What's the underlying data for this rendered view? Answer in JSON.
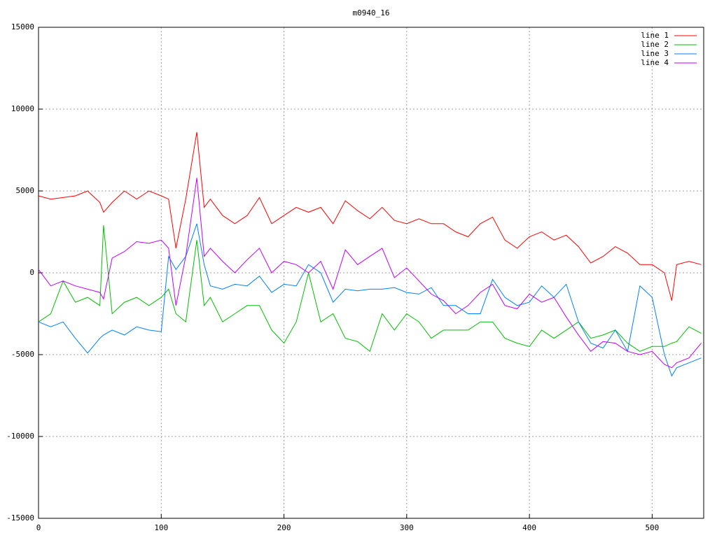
{
  "chart_data": {
    "type": "line",
    "title": "m0940_16",
    "x": [
      0,
      10,
      20,
      30,
      40,
      50,
      53,
      60,
      70,
      80,
      90,
      100,
      106,
      112,
      120,
      129,
      135,
      140,
      150,
      160,
      170,
      180,
      190,
      200,
      210,
      220,
      230,
      240,
      250,
      260,
      270,
      280,
      290,
      300,
      310,
      320,
      330,
      340,
      350,
      360,
      370,
      380,
      390,
      400,
      410,
      420,
      430,
      440,
      450,
      460,
      470,
      480,
      490,
      500,
      510,
      516,
      520,
      530,
      540
    ],
    "series": [
      {
        "name": "line 1",
        "color": "#ff0000",
        "values": [
          4700,
          4500,
          4600,
          4700,
          5000,
          4300,
          3700,
          4300,
          5000,
          4500,
          5000,
          4700,
          4500,
          1500,
          4500,
          8600,
          4000,
          4500,
          3500,
          3000,
          3500,
          4600,
          3000,
          3500,
          4000,
          3700,
          4000,
          3000,
          4400,
          3800,
          3300,
          4000,
          3200,
          3000,
          3300,
          3000,
          3000,
          2500,
          2200,
          3000,
          3400,
          2000,
          1500,
          2200,
          2500,
          2000,
          2300,
          1600,
          600,
          1000,
          1600,
          1200,
          500,
          500,
          0,
          -1700,
          500,
          700,
          500
        ]
      },
      {
        "name": "line 2",
        "color": "#00c000",
        "values": [
          -3000,
          -2500,
          -500,
          -1800,
          -1500,
          -2000,
          2900,
          -2500,
          -1800,
          -1500,
          -2000,
          -1500,
          -1000,
          -2500,
          -3000,
          2000,
          -2000,
          -1500,
          -3000,
          -2500,
          -2000,
          -2000,
          -3500,
          -4300,
          -3000,
          0,
          -3000,
          -2500,
          -4000,
          -4200,
          -4800,
          -2500,
          -3500,
          -2500,
          -3000,
          -4000,
          -3500,
          -3500,
          -3500,
          -3000,
          -3000,
          -4000,
          -4300,
          -4500,
          -3500,
          -4000,
          -3500,
          -3000,
          -4000,
          -3800,
          -3500,
          -4300,
          -4800,
          -4500,
          -4500,
          -4300,
          -4200,
          -3300,
          -3700
        ]
      },
      {
        "name": "line 3",
        "color": "#0080ff",
        "values": [
          -3000,
          -3300,
          -3000,
          -4000,
          -4900,
          -4000,
          -3800,
          -3500,
          -3800,
          -3300,
          -3500,
          -3600,
          1000,
          200,
          1000,
          3000,
          500,
          -800,
          -1000,
          -700,
          -800,
          -200,
          -1200,
          -700,
          -800,
          500,
          0,
          -1800,
          -1000,
          -1100,
          -1000,
          -1000,
          -900,
          -1200,
          -1300,
          -900,
          -2000,
          -2000,
          -2500,
          -2500,
          -400,
          -1500,
          -2000,
          -1800,
          -800,
          -1500,
          -700,
          -3000,
          -4300,
          -4600,
          -3500,
          -4800,
          -800,
          -1500,
          -5000,
          -6300,
          -5800,
          -5500,
          -5200
        ]
      },
      {
        "name": "line 4",
        "color": "#c000ff",
        "values": [
          200,
          -800,
          -500,
          -800,
          -1000,
          -1200,
          -1600,
          900,
          1300,
          1900,
          1800,
          2000,
          1500,
          -2000,
          1000,
          5800,
          1000,
          1500,
          700,
          0,
          800,
          1500,
          0,
          700,
          500,
          0,
          700,
          -1000,
          1400,
          500,
          1000,
          1500,
          -300,
          300,
          -500,
          -1300,
          -1700,
          -2500,
          -2000,
          -1200,
          -700,
          -2000,
          -2200,
          -1300,
          -1800,
          -1500,
          -2700,
          -3800,
          -4800,
          -4200,
          -4300,
          -4800,
          -5000,
          -4800,
          -5600,
          -5800,
          -5500,
          -5200,
          -4300
        ]
      }
    ],
    "xlim": [
      0,
      542
    ],
    "ylim": [
      -15000,
      15000
    ],
    "xticks": [
      0,
      100,
      200,
      300,
      400,
      500
    ],
    "yticks": [
      -15000,
      -10000,
      -5000,
      0,
      5000,
      10000,
      15000
    ],
    "grid": true,
    "legend": "top-right"
  }
}
